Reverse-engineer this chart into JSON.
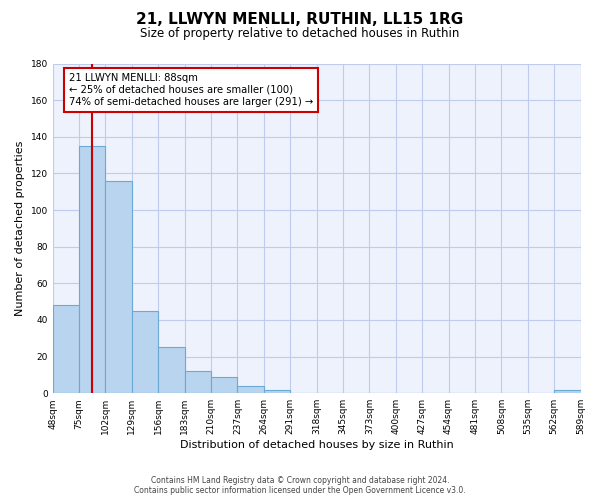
{
  "title": "21, LLWYN MENLLI, RUTHIN, LL15 1RG",
  "subtitle": "Size of property relative to detached houses in Ruthin",
  "xlabel": "Distribution of detached houses by size in Ruthin",
  "ylabel": "Number of detached properties",
  "bar_values": [
    48,
    135,
    116,
    45,
    25,
    12,
    9,
    4,
    2,
    0,
    0,
    0,
    0,
    0,
    0,
    0,
    0,
    0,
    0,
    2
  ],
  "bin_labels": [
    "48sqm",
    "75sqm",
    "102sqm",
    "129sqm",
    "156sqm",
    "183sqm",
    "210sqm",
    "237sqm",
    "264sqm",
    "291sqm",
    "318sqm",
    "345sqm",
    "373sqm",
    "400sqm",
    "427sqm",
    "454sqm",
    "481sqm",
    "508sqm",
    "535sqm",
    "562sqm",
    "589sqm"
  ],
  "bar_color": "#b8d4ee",
  "bar_edge_color": "#6aaad4",
  "ylim": [
    0,
    180
  ],
  "yticks": [
    0,
    20,
    40,
    60,
    80,
    100,
    120,
    140,
    160,
    180
  ],
  "property_line_bin": 1.48,
  "property_line_color": "#cc0000",
  "annotation_box_text": "21 LLWYN MENLLI: 88sqm\n← 25% of detached houses are smaller (100)\n74% of semi-detached houses are larger (291) →",
  "annotation_box_color": "#cc0000",
  "footer_line1": "Contains HM Land Registry data © Crown copyright and database right 2024.",
  "footer_line2": "Contains public sector information licensed under the Open Government Licence v3.0.",
  "background_color": "#eef2fc",
  "grid_color": "#c0ccee",
  "fig_background": "#ffffff"
}
